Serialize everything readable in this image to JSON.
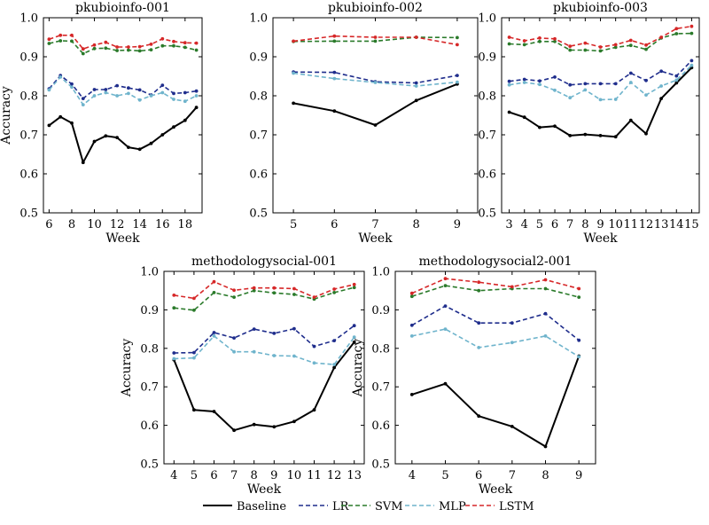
{
  "series_styles": [
    {
      "name": "Baseline",
      "color": "#000000",
      "dash": ""
    },
    {
      "name": "LR",
      "color": "#1f2d8c",
      "dash": "5,3"
    },
    {
      "name": "SVM",
      "color": "#2a7a2a",
      "dash": "5,3"
    },
    {
      "name": "MLP",
      "color": "#6fb4cc",
      "dash": "5,3"
    },
    {
      "name": "LSTM",
      "color": "#d62728",
      "dash": "5,3"
    }
  ],
  "legend": {
    "position": "bottom-center",
    "entries": [
      "Baseline",
      "LR",
      "SVM",
      "MLP",
      "LSTM"
    ]
  },
  "chart_data": [
    {
      "type": "line",
      "title": "pkubioinfo-001",
      "xlabel": "Week",
      "ylabel": "Accuracy",
      "ylim": [
        0.5,
        1.0
      ],
      "xlim": [
        5.5,
        19.5
      ],
      "yticks": [
        0.5,
        0.6,
        0.7,
        0.8,
        0.9,
        1.0
      ],
      "x": [
        6,
        7,
        8,
        9,
        10,
        11,
        12,
        13,
        14,
        15,
        16,
        17,
        18,
        19
      ],
      "xticks": [
        6,
        8,
        10,
        12,
        14,
        16,
        18
      ],
      "series": [
        {
          "name": "Baseline",
          "values": [
            0.724,
            0.746,
            0.73,
            0.629,
            0.683,
            0.697,
            0.693,
            0.668,
            0.663,
            0.678,
            0.7,
            0.72,
            0.737,
            0.77
          ]
        },
        {
          "name": "LR",
          "values": [
            0.818,
            0.852,
            0.83,
            0.793,
            0.816,
            0.816,
            0.826,
            0.82,
            0.815,
            0.802,
            0.827,
            0.806,
            0.808,
            0.812
          ]
        },
        {
          "name": "SVM",
          "values": [
            0.934,
            0.941,
            0.94,
            0.908,
            0.921,
            0.922,
            0.916,
            0.917,
            0.915,
            0.918,
            0.928,
            0.928,
            0.924,
            0.917
          ]
        },
        {
          "name": "MLP",
          "values": [
            0.815,
            0.848,
            0.822,
            0.777,
            0.8,
            0.808,
            0.8,
            0.806,
            0.789,
            0.8,
            0.808,
            0.791,
            0.786,
            0.8
          ]
        },
        {
          "name": "LSTM",
          "values": [
            0.945,
            0.955,
            0.955,
            0.92,
            0.93,
            0.937,
            0.925,
            0.925,
            0.926,
            0.932,
            0.946,
            0.939,
            0.936,
            0.935
          ]
        }
      ]
    },
    {
      "type": "line",
      "title": "pkubioinfo-002",
      "xlabel": "Week",
      "ylabel": "",
      "ylim": [
        0.5,
        1.0
      ],
      "xlim": [
        4.5,
        9.5
      ],
      "yticks": [
        0.5,
        0.6,
        0.7,
        0.8,
        0.9,
        1.0
      ],
      "x": [
        5,
        6,
        7,
        8,
        9
      ],
      "xticks": [
        5,
        6,
        7,
        8,
        9
      ],
      "series": [
        {
          "name": "Baseline",
          "values": [
            0.781,
            0.761,
            0.725,
            0.788,
            0.83
          ]
        },
        {
          "name": "LR",
          "values": [
            0.861,
            0.86,
            0.836,
            0.833,
            0.852
          ]
        },
        {
          "name": "SVM",
          "values": [
            0.939,
            0.94,
            0.94,
            0.95,
            0.949
          ]
        },
        {
          "name": "MLP",
          "values": [
            0.858,
            0.844,
            0.834,
            0.825,
            0.835
          ]
        },
        {
          "name": "LSTM",
          "values": [
            0.94,
            0.953,
            0.95,
            0.95,
            0.931
          ]
        }
      ]
    },
    {
      "type": "line",
      "title": "pkubioinfo-003",
      "xlabel": "Week",
      "ylabel": "",
      "ylim": [
        0.5,
        1.0
      ],
      "xlim": [
        2.5,
        15.5
      ],
      "yticks": [
        0.5,
        0.6,
        0.7,
        0.8,
        0.9,
        1.0
      ],
      "x": [
        3,
        4,
        5,
        6,
        7,
        8,
        9,
        10,
        11,
        12,
        13,
        14,
        15
      ],
      "xticks": [
        3,
        4,
        5,
        6,
        7,
        8,
        9,
        10,
        11,
        12,
        13,
        14,
        15
      ],
      "series": [
        {
          "name": "Baseline",
          "values": [
            0.758,
            0.745,
            0.719,
            0.722,
            0.698,
            0.701,
            0.698,
            0.695,
            0.737,
            0.703,
            0.793,
            0.833,
            0.872
          ]
        },
        {
          "name": "LR",
          "values": [
            0.837,
            0.842,
            0.838,
            0.848,
            0.828,
            0.831,
            0.831,
            0.831,
            0.858,
            0.839,
            0.863,
            0.851,
            0.89
          ]
        },
        {
          "name": "SVM",
          "values": [
            0.933,
            0.931,
            0.939,
            0.939,
            0.917,
            0.917,
            0.915,
            0.924,
            0.929,
            0.919,
            0.948,
            0.959,
            0.96
          ]
        },
        {
          "name": "MLP",
          "values": [
            0.828,
            0.834,
            0.829,
            0.814,
            0.795,
            0.815,
            0.79,
            0.791,
            0.834,
            0.802,
            0.825,
            0.84,
            0.878
          ]
        },
        {
          "name": "LSTM",
          "values": [
            0.95,
            0.941,
            0.948,
            0.946,
            0.927,
            0.935,
            0.925,
            0.931,
            0.942,
            0.93,
            0.95,
            0.972,
            0.978
          ]
        }
      ]
    },
    {
      "type": "line",
      "title": "methodologysocial-001",
      "xlabel": "Week",
      "ylabel": "Accuracy",
      "ylim": [
        0.5,
        1.0
      ],
      "xlim": [
        3.5,
        13.5
      ],
      "yticks": [
        0.5,
        0.6,
        0.7,
        0.8,
        0.9,
        1.0
      ],
      "x": [
        4,
        5,
        6,
        7,
        8,
        9,
        10,
        11,
        12,
        13
      ],
      "xticks": [
        4,
        5,
        6,
        7,
        8,
        9,
        10,
        11,
        12,
        13
      ],
      "series": [
        {
          "name": "Baseline",
          "values": [
            0.77,
            0.64,
            0.636,
            0.587,
            0.602,
            0.596,
            0.61,
            0.64,
            0.75,
            0.816
          ]
        },
        {
          "name": "LR",
          "values": [
            0.788,
            0.789,
            0.841,
            0.827,
            0.85,
            0.839,
            0.851,
            0.805,
            0.82,
            0.859
          ]
        },
        {
          "name": "SVM",
          "values": [
            0.905,
            0.899,
            0.945,
            0.933,
            0.95,
            0.944,
            0.94,
            0.928,
            0.945,
            0.958
          ]
        },
        {
          "name": "MLP",
          "values": [
            0.773,
            0.775,
            0.832,
            0.791,
            0.791,
            0.781,
            0.78,
            0.762,
            0.758,
            0.829
          ]
        },
        {
          "name": "LSTM",
          "values": [
            0.938,
            0.93,
            0.973,
            0.951,
            0.957,
            0.957,
            0.955,
            0.933,
            0.954,
            0.966
          ]
        }
      ]
    },
    {
      "type": "line",
      "title": "methodologysocial2-001",
      "xlabel": "Week",
      "ylabel": "Accuracy",
      "ylim": [
        0.5,
        1.0
      ],
      "xlim": [
        3.5,
        9.5
      ],
      "yticks": [
        0.5,
        0.6,
        0.7,
        0.8,
        0.9,
        1.0
      ],
      "x": [
        4,
        5,
        6,
        7,
        8,
        9
      ],
      "xticks": [
        4,
        5,
        6,
        7,
        8,
        9
      ],
      "series": [
        {
          "name": "Baseline",
          "values": [
            0.68,
            0.708,
            0.624,
            0.597,
            0.545,
            0.78
          ]
        },
        {
          "name": "LR",
          "values": [
            0.86,
            0.91,
            0.866,
            0.866,
            0.89,
            0.821
          ]
        },
        {
          "name": "SVM",
          "values": [
            0.935,
            0.963,
            0.95,
            0.955,
            0.955,
            0.933
          ]
        },
        {
          "name": "MLP",
          "values": [
            0.832,
            0.85,
            0.802,
            0.815,
            0.832,
            0.778
          ]
        },
        {
          "name": "LSTM",
          "values": [
            0.943,
            0.981,
            0.972,
            0.96,
            0.978,
            0.955
          ]
        }
      ]
    }
  ]
}
